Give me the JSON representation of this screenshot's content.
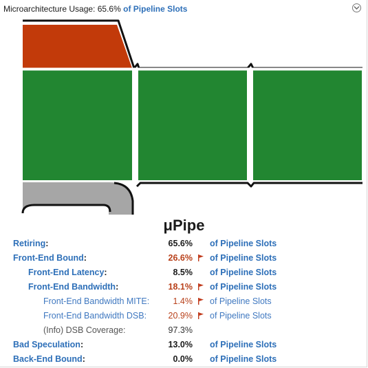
{
  "header": {
    "label": "Microarchitecture Usage:",
    "value": "65.6%",
    "unit": "of Pipeline Slots"
  },
  "title": "μPipe",
  "colors": {
    "retiring": "#228631",
    "bad_speculation": "#c23a0a",
    "back_end_bound": "#a6a6a6",
    "link": "#2d6fb8",
    "hot_value": "#b8401a",
    "flag": "#c0391a"
  },
  "metrics": [
    {
      "name": "Retiring",
      "colon": ":",
      "value": "65.6%",
      "unit": "of Pipeline Slots",
      "level": 0,
      "hot": false,
      "flag": false
    },
    {
      "name": "Front-End Bound",
      "colon": ":",
      "value": "26.6%",
      "unit": "of Pipeline Slots",
      "level": 0,
      "hot": true,
      "flag": true
    },
    {
      "name": "Front-End Latency",
      "colon": ":",
      "value": "8.5%",
      "unit": "of Pipeline Slots",
      "level": 1,
      "hot": false,
      "flag": false
    },
    {
      "name": "Front-End Bandwidth",
      "colon": ":",
      "value": "18.1%",
      "unit": "of Pipeline Slots",
      "level": 1,
      "hot": true,
      "flag": true
    },
    {
      "name": "Front-End Bandwidth MITE",
      "colon": ":",
      "value": "1.4%",
      "unit": "of Pipeline Slots",
      "level": 2,
      "hot": true,
      "flag": true
    },
    {
      "name": "Front-End Bandwidth DSB",
      "colon": ":",
      "value": "20.9%",
      "unit": "of Pipeline Slots",
      "level": 2,
      "hot": true,
      "flag": true
    },
    {
      "name": "(Info) DSB Coverage",
      "colon": ":",
      "value": "97.3%",
      "unit": "",
      "level": 3,
      "hot": false,
      "flag": false
    },
    {
      "name": "Bad Speculation",
      "colon": ":",
      "value": "13.0%",
      "unit": "of Pipeline Slots",
      "level": 0,
      "hot": false,
      "flag": false
    },
    {
      "name": "Back-End Bound",
      "colon": ":",
      "value": "0.0%",
      "unit": "of Pipeline Slots",
      "level": 0,
      "hot": false,
      "flag": false
    }
  ]
}
